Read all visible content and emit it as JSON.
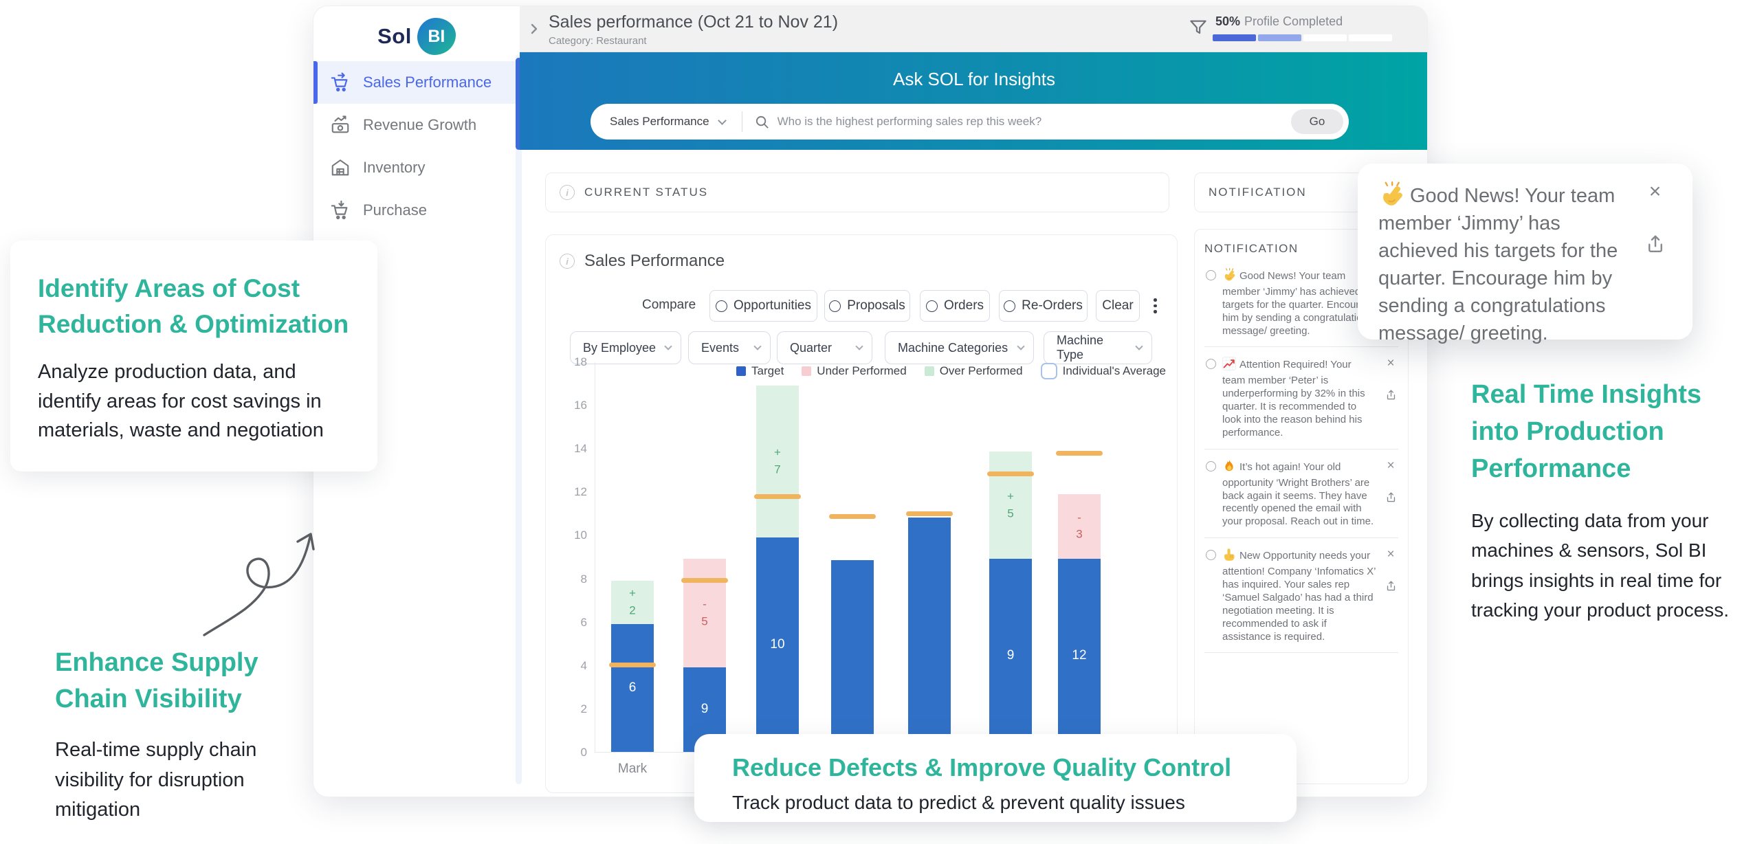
{
  "app": {
    "logo_part1": "Sol",
    "logo_part2": "BI"
  },
  "colors": {
    "accent_teal": "#2EB59B",
    "banner_blue": "#1B78BC",
    "banner_teal": "#00A4A4",
    "active_blue": "#4A67EC",
    "bar_blue": "#3071C7",
    "under_pink": "#F9D9DB",
    "over_green": "#DDF2E5",
    "average_orange": "#EFB45D"
  },
  "sidebar": {
    "items": [
      {
        "label": "Sales Performance",
        "icon": "cart-up",
        "active": true
      },
      {
        "label": "Revenue Growth",
        "icon": "money-growth",
        "active": false
      },
      {
        "label": "Inventory",
        "icon": "warehouse",
        "active": false
      },
      {
        "label": "Purchase",
        "icon": "cart-down",
        "active": false
      }
    ]
  },
  "header": {
    "title": "Sales performance (Oct 21 to Nov 21)",
    "subtitle": "Category: Restaurant",
    "profile_percent": "50%",
    "profile_label": "Profile Completed"
  },
  "banner": {
    "title": "Ask SOL for Insights",
    "dropdown_value": "Sales Performance",
    "search_placeholder": "Who is the highest performing sales rep this week?",
    "go_label": "Go"
  },
  "status_bar": {
    "label": "CURRENT STATUS"
  },
  "chart_card": {
    "title": "Sales Performance",
    "compare_label": "Compare",
    "compare_options": [
      "Opportunities",
      "Proposals",
      "Orders",
      "Re-Orders"
    ],
    "clear_label": "Clear",
    "filters": [
      "By Employee",
      "Events",
      "Quarter",
      "Machine Categories",
      "Machine Type"
    ]
  },
  "chart_data": {
    "type": "bar",
    "title": "Sales Performance",
    "ylim": [
      0,
      18
    ],
    "yticks": [
      0,
      2,
      4,
      6,
      8,
      10,
      12,
      14,
      16,
      18
    ],
    "grid": false,
    "legend_position": "top-right",
    "legend": [
      "Target",
      "Under Performed",
      "Over Performed",
      "Individual's Average"
    ],
    "bars": [
      {
        "category": "Mark",
        "target": 5.9,
        "target_label": "6",
        "under": 0,
        "over": 2.0,
        "over_label": "+ 2",
        "under_label": "",
        "average": 4.0
      },
      {
        "category": "",
        "target": 3.9,
        "target_label": "9",
        "under": 5.0,
        "over": 0,
        "over_label": "",
        "under_label": "- 5",
        "average": 7.9
      },
      {
        "category": "",
        "target": 9.9,
        "target_label": "10",
        "under": 0,
        "over": 7.0,
        "over_label": "+ 7",
        "under_label": "",
        "average": 11.75
      },
      {
        "category": "",
        "target": 8.85,
        "target_label": "",
        "under": 0,
        "over": 0,
        "over_label": "",
        "under_label": "",
        "average": 10.85
      },
      {
        "category": "",
        "target": 10.8,
        "target_label": "",
        "under": 0,
        "over": 0,
        "over_label": "",
        "under_label": "",
        "average": 10.95
      },
      {
        "category": "",
        "target": 8.9,
        "target_label": "9",
        "under": 0,
        "over": 4.95,
        "over_label": "+ 5",
        "under_label": "",
        "average": 12.8
      },
      {
        "category": "",
        "target": 8.9,
        "target_label": "12",
        "under": 3.0,
        "over": 0,
        "over_label": "",
        "under_label": "- 3",
        "average": 13.75
      }
    ]
  },
  "notifications": {
    "header_label": "NOTIFICATION",
    "panel_title": "NOTIFICATION",
    "items": [
      {
        "icon": "clap",
        "text": "Good News! Your team member ‘Jimmy’ has achieved his targets for the quarter. Encourage him by sending a congratulations message/ greeting."
      },
      {
        "icon": "chart-up",
        "text": "Attention Required! Your team member ‘Peter’ is underperforming by 32% in this quarter. It is recommended to look into the reason behind his performance."
      },
      {
        "icon": "fire",
        "text": "It’s hot again! Your old opportunity ‘Wright Brothers’ are back again it seems. They have recently opened the email with your proposal. Reach out in time."
      },
      {
        "icon": "point-up",
        "text": "New Opportunity needs your attention! Company ‘Infomatics X’ has inquired. Your sales rep ‘Samuel Salgado’ has had a third negotiation meeting. It is recommended to ask if assistance is required."
      }
    ]
  },
  "toast": {
    "icon": "clap",
    "text": "Good News! Your team member ‘Jimmy’ has achieved his targets for the quarter. Encourage him by sending a congratulations message/ greeting."
  },
  "annotations": {
    "cost_card": {
      "title": "Identify Areas of Cost Reduction & Optimization",
      "body": "Analyze production data, and identify areas for cost savings in materials, waste and negotiation"
    },
    "supply": {
      "title": "Enhance Supply Chain Visibility",
      "body": "Real-time supply chain visibility for disruption mitigation"
    },
    "realtime": {
      "title": "Real Time Insights into Production Performance",
      "body": "By collecting data from your machines & sensors, Sol BI brings insights in real time for tracking your product process."
    },
    "quality_card": {
      "title": "Reduce Defects & Improve Quality Control",
      "body": "Track product data to predict & prevent quality issues"
    }
  }
}
